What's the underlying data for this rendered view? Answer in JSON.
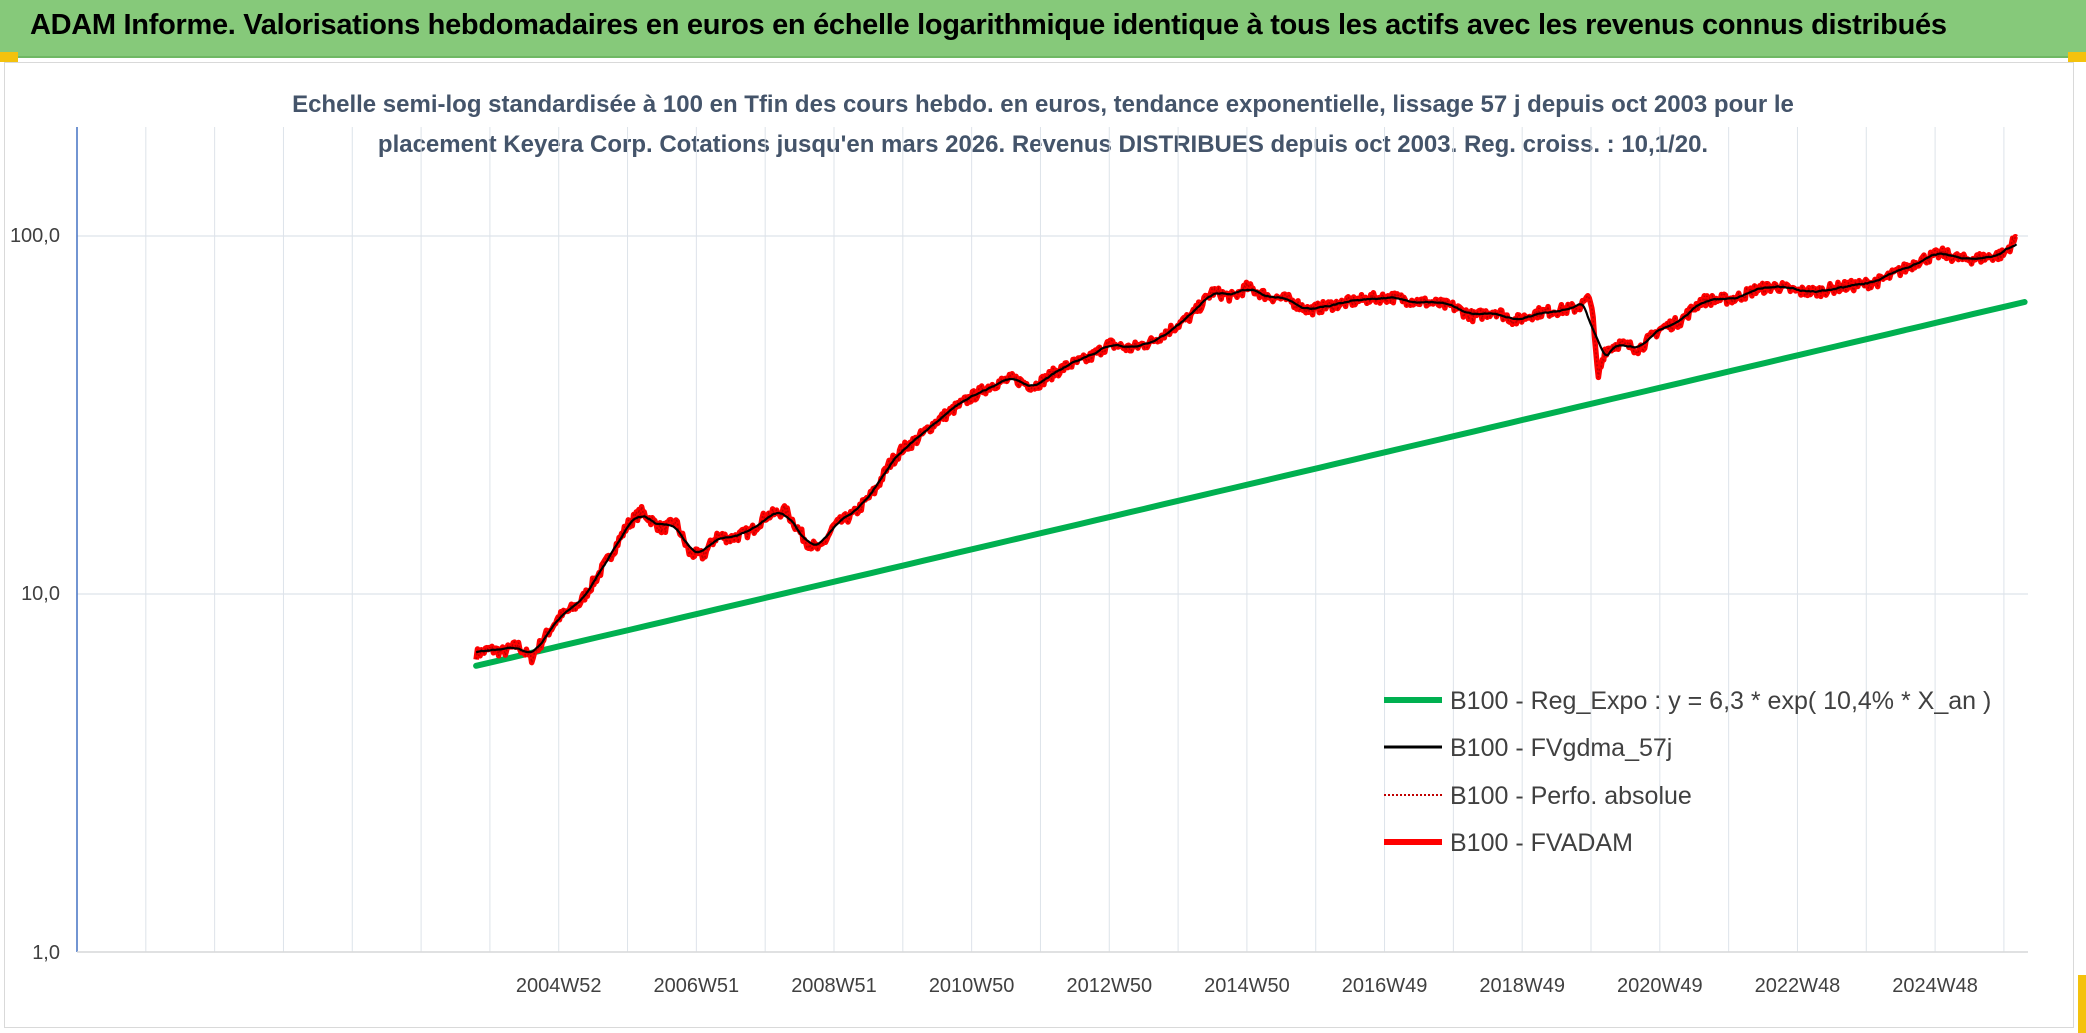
{
  "banner": {
    "title": "ADAM Informe. Valorisations hebdomadaires en euros en échelle logarithmique identique à tous les actifs avec les revenus connus distribués",
    "color": "#86c97a"
  },
  "chart_data": {
    "type": "line",
    "subtitle": [
      "Echelle semi-log standardisée à 100 en Tfin des cours hebdo. en euros, tendance exponentielle, lissage 57 j depuis oct 2003 pour le",
      "placement Keyera Corp. Cotations jusqu'en mars 2026. Revenus DISTRIBUES depuis oct 2003. Reg. croiss. : 10,1/20."
    ],
    "y_scale": "log",
    "ylim": [
      1,
      100
    ],
    "ytick_labels": [
      "1,0",
      "10,0",
      "100,0"
    ],
    "ytick_values": [
      1,
      10,
      100
    ],
    "xtick_labels": [
      "2004W52",
      "2006W51",
      "2008W51",
      "2010W50",
      "2012W50",
      "2014W50",
      "2016W49",
      "2018W49",
      "2020W49",
      "2022W48",
      "2024W48"
    ],
    "xtick_years": [
      2005,
      2007,
      2009,
      2011,
      2013,
      2015,
      2017,
      2019,
      2021,
      2023,
      2025
    ],
    "xlim": [
      1998.0,
      2026.35
    ],
    "grid": true,
    "legend_position": "bottom-right",
    "x": [
      2003.8,
      2004.0,
      2004.2,
      2004.4,
      2004.6,
      2004.8,
      2005.0,
      2005.3,
      2005.6,
      2005.8,
      2006.0,
      2006.2,
      2006.5,
      2006.7,
      2006.9,
      2007.1,
      2007.3,
      2007.5,
      2007.8,
      2008.0,
      2008.3,
      2008.6,
      2008.8,
      2009.0,
      2009.3,
      2009.6,
      2009.8,
      2010.0,
      2010.2,
      2010.5,
      2010.8,
      2011.0,
      2011.3,
      2011.6,
      2011.9,
      2012.2,
      2012.4,
      2012.7,
      2013.0,
      2013.3,
      2013.6,
      2013.9,
      2014.2,
      2014.5,
      2014.8,
      2015.0,
      2015.3,
      2015.6,
      2015.9,
      2016.2,
      2016.5,
      2016.8,
      2017.1,
      2017.4,
      2017.7,
      2018.0,
      2018.3,
      2018.6,
      2018.9,
      2019.2,
      2019.5,
      2019.8,
      2020.0,
      2020.1,
      2020.2,
      2020.4,
      2020.7,
      2021.0,
      2021.3,
      2021.6,
      2021.9,
      2022.1,
      2022.4,
      2022.7,
      2023.0,
      2023.3,
      2023.6,
      2023.9,
      2024.2,
      2024.5,
      2024.8,
      2025.1,
      2025.4,
      2025.7,
      2026.0,
      2026.2
    ],
    "series": [
      {
        "name": "B100 - Reg_Expo : y = 6,3 * exp( 10,4% *  X_an )",
        "color": "#00b050",
        "regression": {
          "a": 6.3,
          "rate": 0.104
        },
        "x_start": 2003.8,
        "x_end": 2026.35
      },
      {
        "name": "B100 - FVgdma_57j",
        "color": "#000000",
        "smoothing_weeks": 8,
        "x_start": 2003.8,
        "x_end": 2026.2
      },
      {
        "name": "B100 - Perfo. absolue",
        "color": "#c00000",
        "dotted": true
      },
      {
        "name": "B100 - FVADAM",
        "color": "#ff0000",
        "values": [
          6.8,
          7.0,
          6.9,
          7.2,
          6.6,
          7.6,
          8.6,
          9.4,
          11.5,
          13.3,
          15.6,
          17.0,
          15.2,
          15.9,
          13.0,
          12.8,
          14.6,
          14.3,
          15.0,
          16.5,
          17.1,
          14.0,
          13.3,
          15.5,
          16.8,
          19.5,
          23.0,
          25.5,
          27.0,
          30.5,
          33.5,
          35.5,
          38.5,
          40.0,
          38.0,
          41.5,
          43.5,
          45.5,
          50.0,
          48.5,
          50.5,
          55.0,
          60.0,
          70.0,
          67.5,
          72.0,
          68.0,
          66.5,
          62.0,
          64.0,
          65.5,
          67.0,
          67.5,
          66.0,
          65.0,
          63.5,
          59.5,
          62.0,
          58.0,
          61.0,
          62.0,
          63.0,
          67.5,
          40.0,
          48.0,
          50.0,
          48.5,
          55.0,
          58.0,
          66.0,
          66.5,
          67.0,
          71.0,
          72.5,
          70.0,
          70.0,
          72.0,
          73.0,
          75.0,
          80.0,
          86.0,
          89.5,
          86.0,
          87.0,
          89.0,
          100.0
        ]
      }
    ]
  }
}
